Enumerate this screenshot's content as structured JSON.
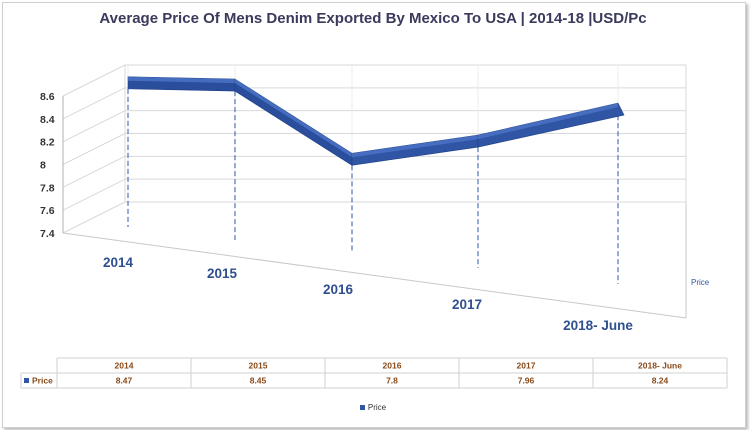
{
  "chart_data": {
    "type": "line",
    "title": "Average Price Of Mens Denim Exported By Mexico To USA | 2014-18 |USD/Pc",
    "categories": [
      "2014",
      "2015",
      "2016",
      "2017",
      "2018- June"
    ],
    "series": [
      {
        "name": "Price",
        "values": [
          8.47,
          8.45,
          7.8,
          7.96,
          8.24
        ],
        "color": "#2f55a4"
      }
    ],
    "y_ticks": [
      "8.6",
      "8.4",
      "8.2",
      "8",
      "7.8",
      "7.6",
      "7.4"
    ],
    "ylim": [
      7.4,
      8.6
    ],
    "depth_axis_label": "Price",
    "grid": true,
    "legend": "bottom",
    "data_table": true
  }
}
